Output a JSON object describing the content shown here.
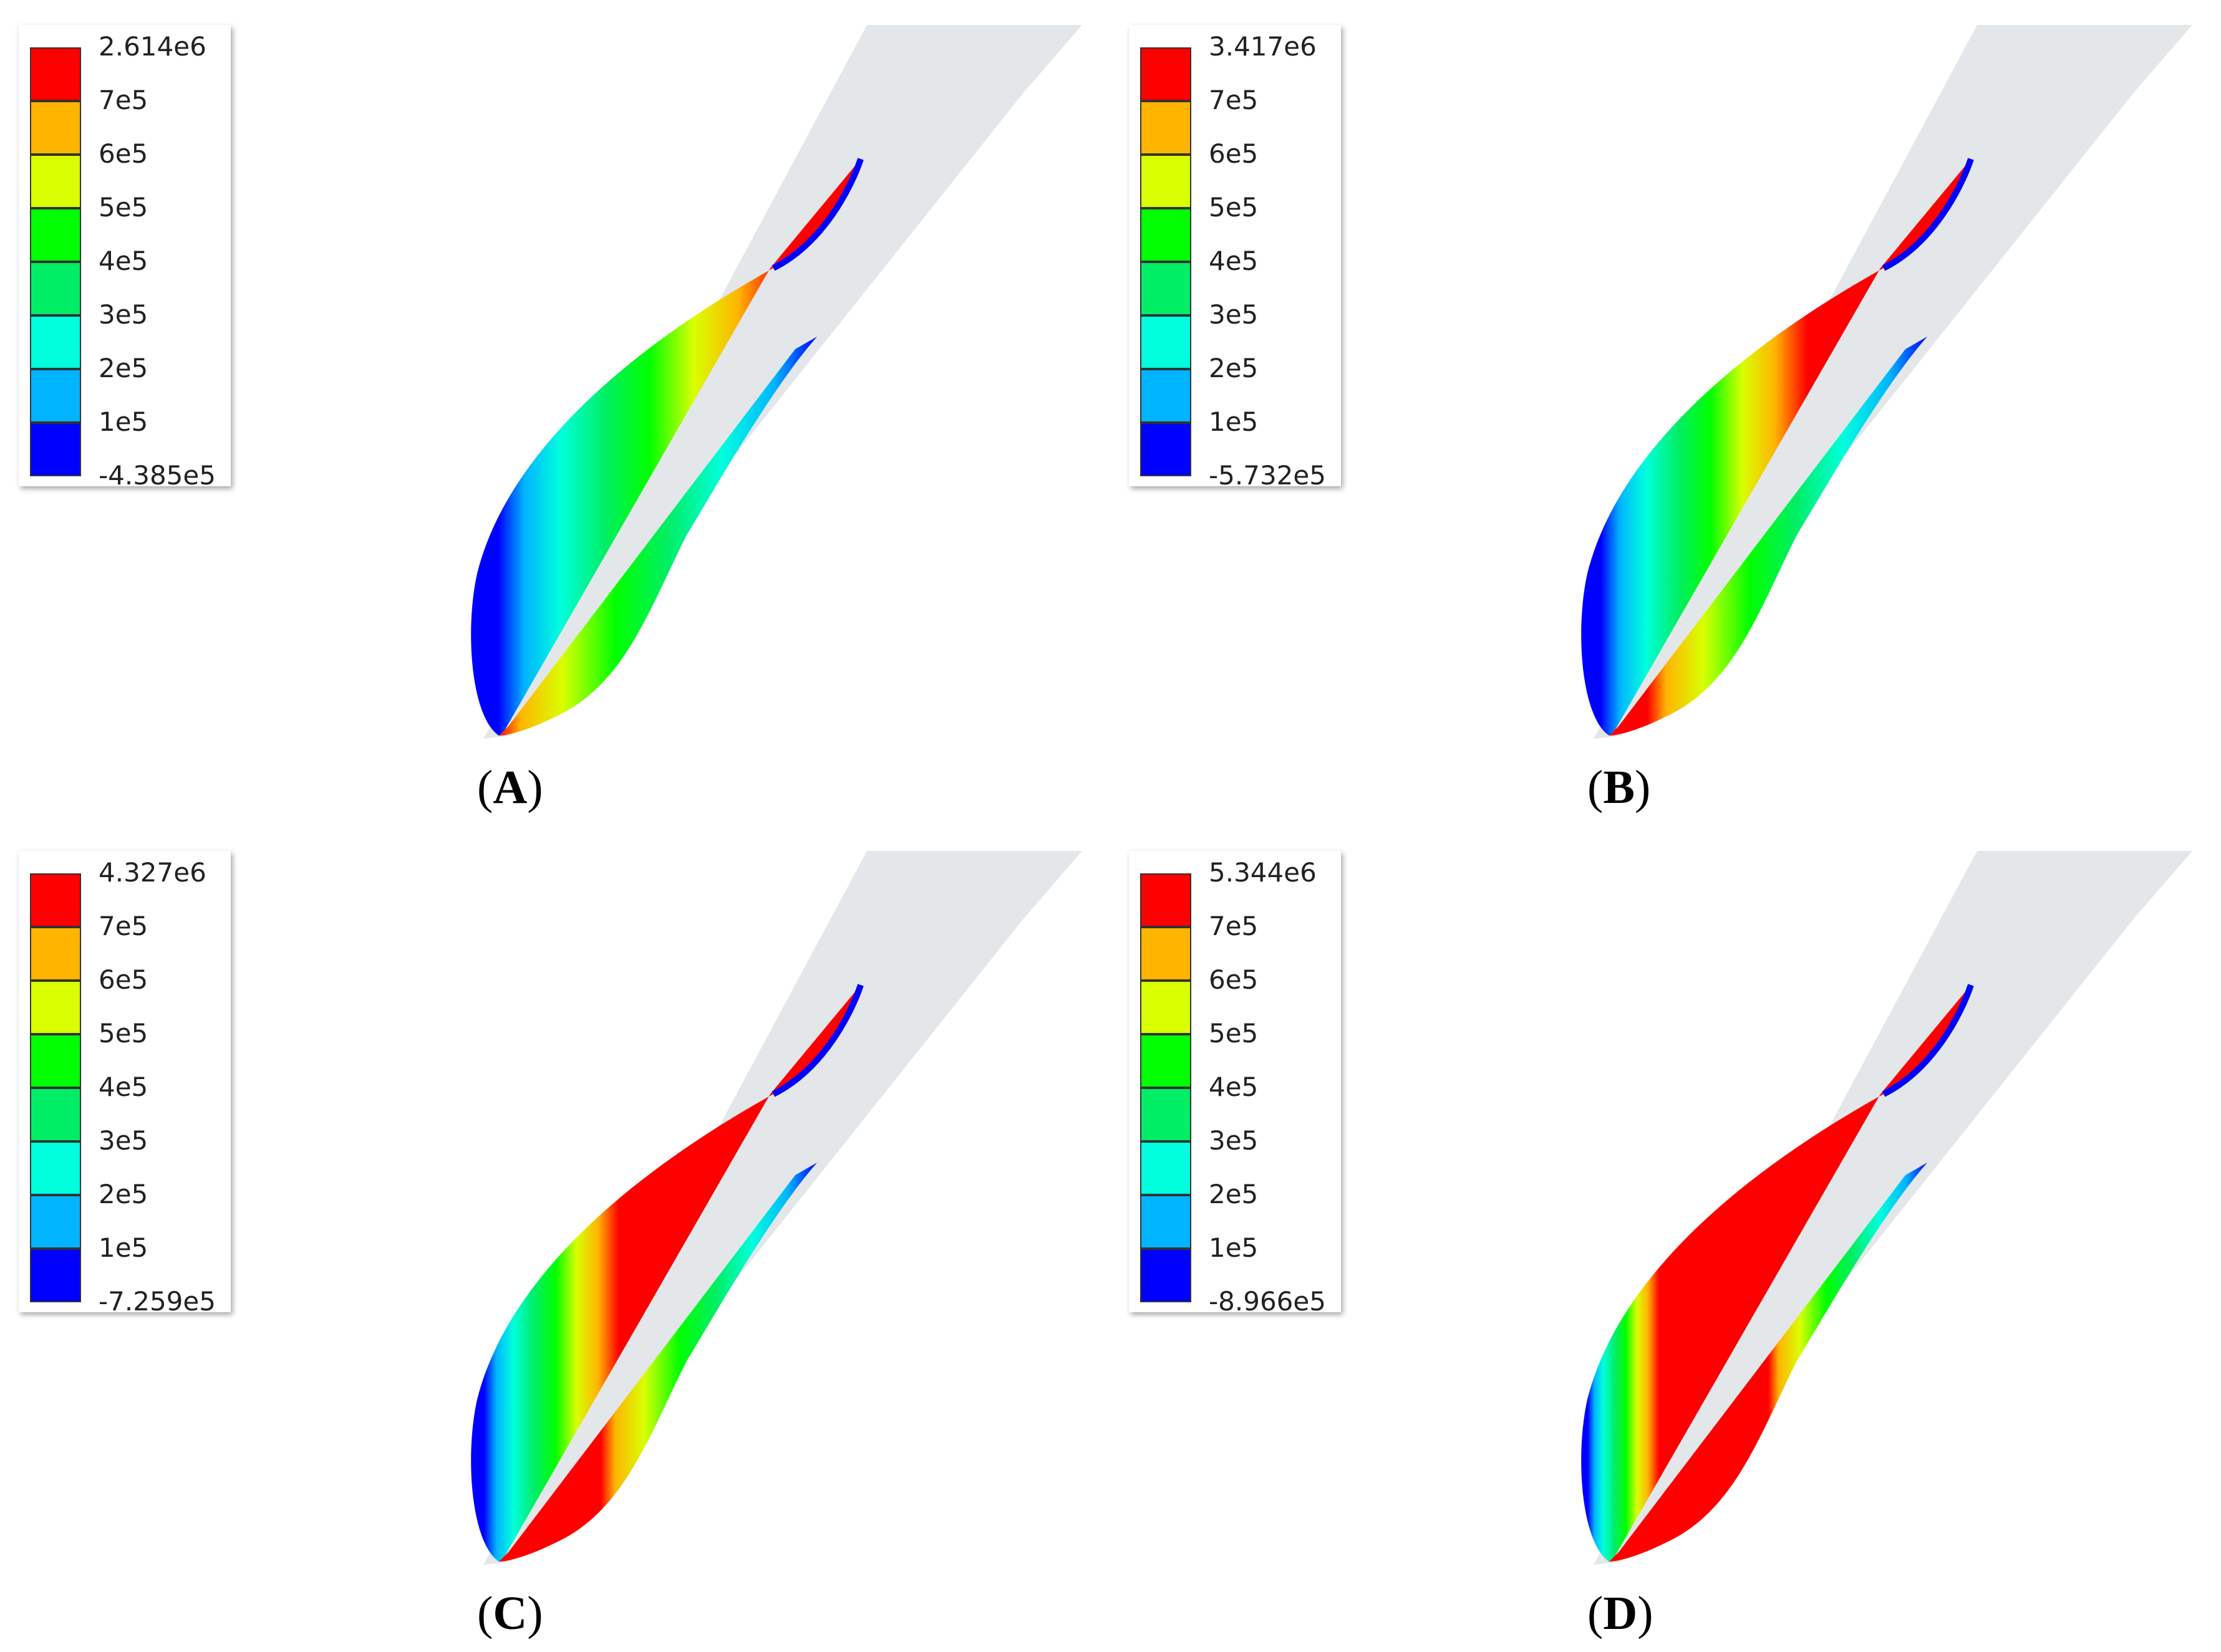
{
  "panels": [
    {
      "id": "A",
      "label": "A",
      "max": "2.614e6",
      "min": "-4.385e5",
      "fill": 0.2
    },
    {
      "id": "B",
      "label": "B",
      "max": "3.417e6",
      "min": "-5.732e5",
      "fill": 0.42
    },
    {
      "id": "C",
      "label": "C",
      "max": "4.327e6",
      "min": "-7.259e5",
      "fill": 0.62
    },
    {
      "id": "D",
      "label": "D",
      "max": "5.344e6",
      "min": "-8.966e5",
      "fill": 0.8
    }
  ],
  "legend_ticks": [
    "7e5",
    "6e5",
    "5e5",
    "4e5",
    "3e5",
    "2e5",
    "1e5"
  ],
  "colors": {
    "levels": [
      "#ff0000",
      "#ffb400",
      "#d9ff00",
      "#00ff00",
      "#00ee66",
      "#00ffdd",
      "#00b4ff",
      "#0000ff"
    ],
    "blade": "#e3e7ea"
  }
}
